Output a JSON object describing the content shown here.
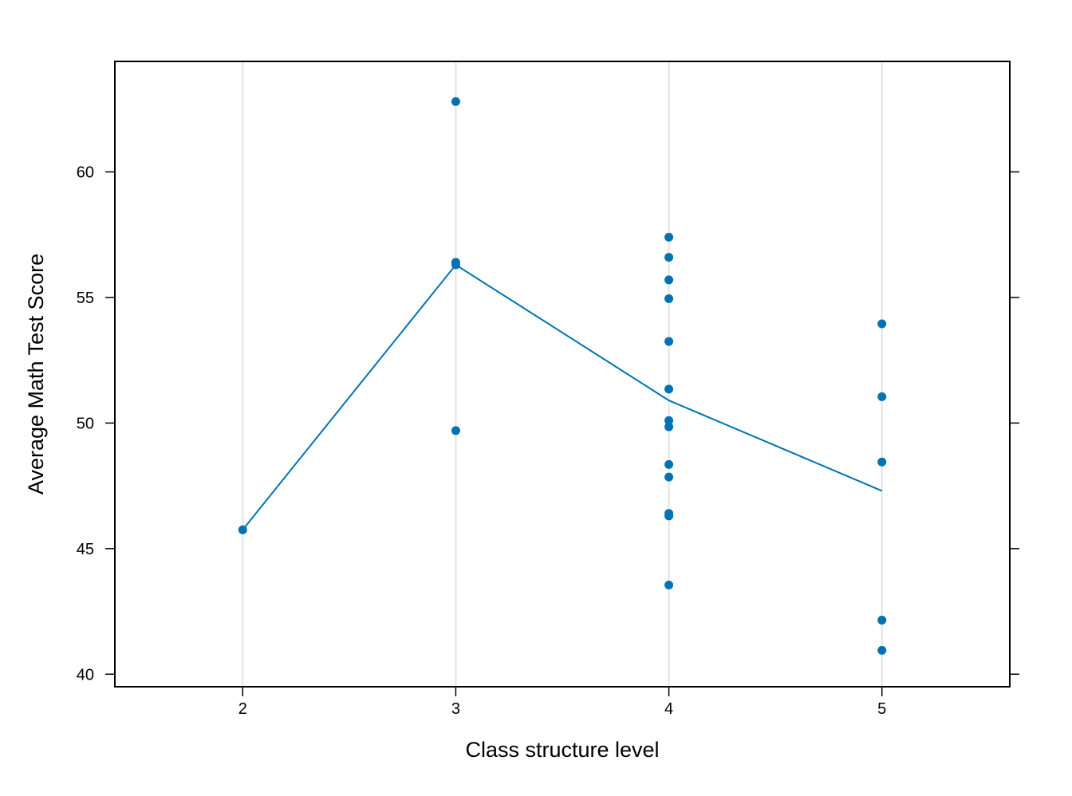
{
  "chart_data": {
    "type": "scatter",
    "xlabel": "Class structure level",
    "ylabel": "Average Math Test Score",
    "xlim": [
      1.4,
      5.6
    ],
    "ylim": [
      39.5,
      64.4
    ],
    "x_ticks": [
      2,
      3,
      4,
      5
    ],
    "y_ticks": [
      40,
      45,
      50,
      55,
      60
    ],
    "grid": "vertical lines at x ticks",
    "point_color": "#0072B2",
    "line_color": "#0072B2",
    "points": [
      {
        "x": 2,
        "y": 45.75
      },
      {
        "x": 3,
        "y": 62.8
      },
      {
        "x": 3,
        "y": 56.4
      },
      {
        "x": 3,
        "y": 56.3
      },
      {
        "x": 3,
        "y": 49.7
      },
      {
        "x": 4,
        "y": 57.4
      },
      {
        "x": 4,
        "y": 56.6
      },
      {
        "x": 4,
        "y": 55.7
      },
      {
        "x": 4,
        "y": 54.95
      },
      {
        "x": 4,
        "y": 53.25
      },
      {
        "x": 4,
        "y": 51.35
      },
      {
        "x": 4,
        "y": 50.1
      },
      {
        "x": 4,
        "y": 49.85
      },
      {
        "x": 4,
        "y": 48.35
      },
      {
        "x": 4,
        "y": 47.85
      },
      {
        "x": 4,
        "y": 46.4
      },
      {
        "x": 4,
        "y": 46.3
      },
      {
        "x": 4,
        "y": 43.55
      },
      {
        "x": 5,
        "y": 53.95
      },
      {
        "x": 5,
        "y": 51.05
      },
      {
        "x": 5,
        "y": 48.45
      },
      {
        "x": 5,
        "y": 42.15
      },
      {
        "x": 5,
        "y": 40.95
      }
    ],
    "mean_line": {
      "x": [
        2,
        3,
        4,
        5
      ],
      "y": [
        45.75,
        56.3,
        50.9,
        47.3
      ]
    }
  }
}
